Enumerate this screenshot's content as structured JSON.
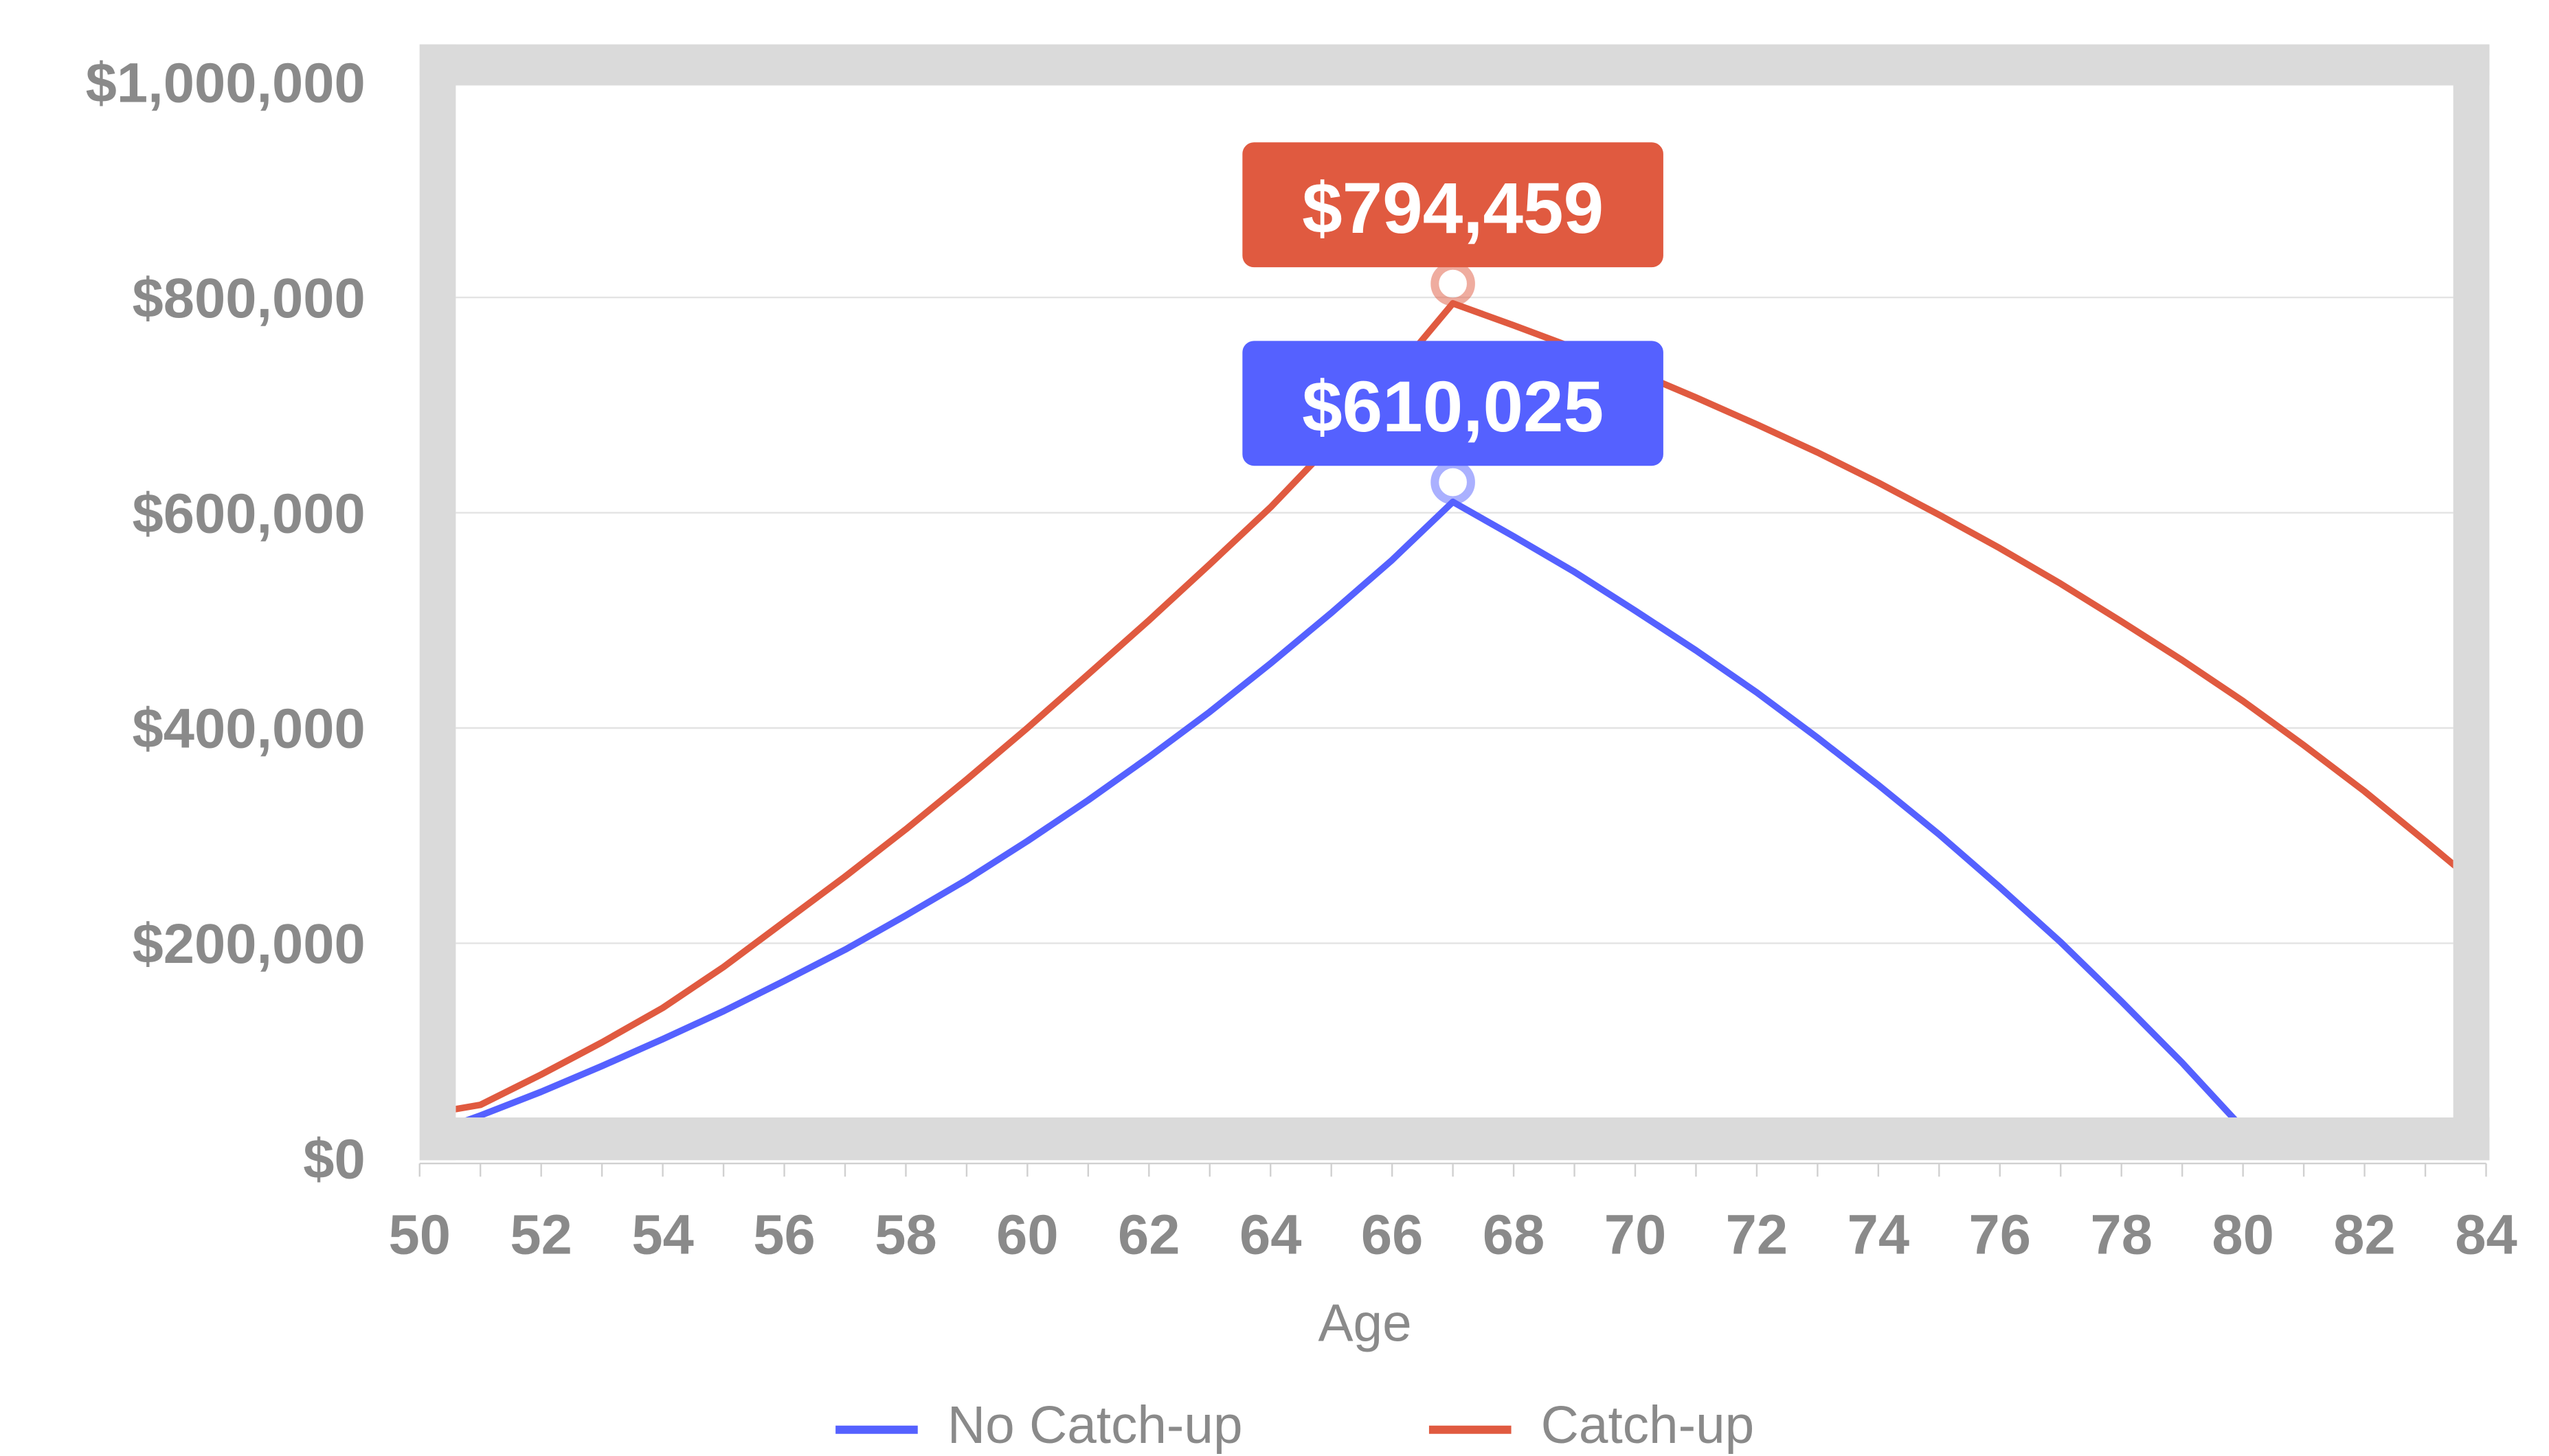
{
  "chart_data": {
    "type": "line",
    "title": "",
    "xlabel": "Age",
    "ylabel": "",
    "xlim": [
      50,
      84
    ],
    "ylim": [
      0,
      1000000
    ],
    "x_ticks": [
      "50",
      "52",
      "54",
      "56",
      "58",
      "60",
      "62",
      "64",
      "66",
      "68",
      "70",
      "72",
      "74",
      "76",
      "78",
      "80",
      "82",
      "84"
    ],
    "y_ticks": [
      "$0",
      "$200,000",
      "$400,000",
      "$600,000",
      "$800,000",
      "$1,000,000"
    ],
    "grid": true,
    "legend_position": "bottom",
    "x": [
      51,
      52,
      53,
      54,
      55,
      56,
      57,
      58,
      59,
      60,
      61,
      62,
      63,
      64,
      65,
      66,
      67,
      68,
      69,
      70,
      71,
      72,
      73,
      74,
      75,
      76,
      77,
      78,
      79,
      80,
      81,
      82,
      83,
      84
    ],
    "series": [
      {
        "name": "No Catch-up",
        "color": "#5561ff",
        "values": [
          40000,
          62000,
          86000,
          111000,
          137000,
          165000,
          194000,
          226000,
          259000,
          295000,
          333000,
          373000,
          415000,
          460000,
          507000,
          556000,
          610025,
          578000,
          545000,
          509000,
          472000,
          433000,
          391000,
          347000,
          301000,
          252000,
          201000,
          146000,
          89000,
          28000,
          0,
          0,
          0,
          0
        ]
      },
      {
        "name": "Catch-up",
        "color": "#e05a40",
        "values": [
          50000,
          78000,
          108000,
          140000,
          178000,
          220000,
          262000,
          306000,
          352000,
          400000,
          450000,
          500000,
          552000,
          605000,
          664000,
          727000,
          794459,
          774000,
          753000,
          731000,
          707000,
          682000,
          656000,
          628000,
          598000,
          567000,
          534000,
          499000,
          463000,
          425000,
          384000,
          341000,
          295000,
          248000
        ]
      }
    ],
    "annotations": [
      {
        "series": "Catch-up",
        "x": 67,
        "text": "$794,459"
      },
      {
        "series": "No Catch-up",
        "x": 67,
        "text": "$610,025"
      }
    ]
  },
  "frame_color": "#dadada"
}
